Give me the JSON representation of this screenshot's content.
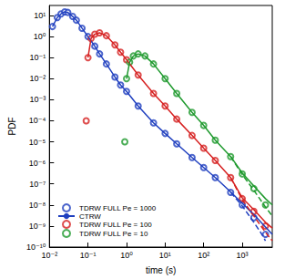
{
  "chart_data": {
    "type": "line",
    "log": true,
    "grid": false,
    "legend": "lower left",
    "x_label": "time (s)",
    "y_label": "PDF",
    "xlim": [
      0.01,
      6000
    ],
    "ylim": [
      1e-10,
      30
    ],
    "xticks": [
      {
        "value": 0.01,
        "label": "10⁻²"
      },
      {
        "value": 0.1,
        "label": "10⁻¹"
      },
      {
        "value": 1,
        "label": "10⁰"
      },
      {
        "value": 10,
        "label": "10¹"
      },
      {
        "value": 100,
        "label": "10²"
      },
      {
        "value": 1000,
        "label": "10³"
      }
    ],
    "yticks": [
      {
        "value": 1e-10,
        "label": "10⁻¹⁰"
      },
      {
        "value": 1e-09,
        "label": "10⁻⁹"
      },
      {
        "value": 1e-08,
        "label": "10⁻⁸"
      },
      {
        "value": 1e-07,
        "label": "10⁻⁷"
      },
      {
        "value": 1e-06,
        "label": "10⁻⁶"
      },
      {
        "value": 1e-05,
        "label": "10⁻⁵"
      },
      {
        "value": 0.0001,
        "label": "10⁻⁴"
      },
      {
        "value": 0.001,
        "label": "10⁻³"
      },
      {
        "value": 0.01,
        "label": "10⁻²"
      },
      {
        "value": 0.1,
        "label": "10⁻¹"
      },
      {
        "value": 1,
        "label": "10⁰"
      },
      {
        "value": 10,
        "label": "10¹"
      }
    ],
    "series": [
      {
        "name": "TDRW FULL Pe = 1000",
        "type": "scatter",
        "marker": "open_circle",
        "color": "#1f3fbf",
        "x": [
          0.012,
          0.016,
          0.02,
          0.025,
          0.03,
          0.04,
          0.05,
          0.07,
          0.1,
          0.15,
          0.2,
          0.3,
          0.5,
          0.7,
          1,
          2,
          5,
          10,
          20,
          50,
          100,
          200,
          500,
          1000,
          2000,
          4000
        ],
        "values": [
          3,
          8,
          12,
          15,
          14,
          9,
          6,
          2.5,
          1,
          0.35,
          0.15,
          0.05,
          0.012,
          0.005,
          0.0025,
          0.0005,
          8e-05,
          2.5e-05,
          8e-06,
          1.8e-06,
          6e-07,
          2e-07,
          4e-08,
          1e-08,
          2.5e-09,
          4e-10
        ]
      },
      {
        "name": "CTRW",
        "type": "line",
        "line_style": "solid",
        "color": "#1f3fbf",
        "x": [
          0.012,
          0.016,
          0.02,
          0.025,
          0.03,
          0.04,
          0.05,
          0.07,
          0.1,
          0.15,
          0.2,
          0.3,
          0.5,
          0.7,
          1,
          2,
          5,
          10,
          20,
          50,
          100,
          200,
          500,
          1000,
          2000,
          4000,
          6000
        ],
        "values": [
          3,
          8,
          12,
          15,
          14,
          9,
          6,
          2.5,
          1,
          0.35,
          0.15,
          0.05,
          0.012,
          0.005,
          0.0025,
          0.0005,
          8e-05,
          2.5e-05,
          8e-06,
          1.8e-06,
          6e-07,
          2e-07,
          4.2e-08,
          1.2e-08,
          3.5e-09,
          9e-10,
          4e-10
        ]
      },
      {
        "name": "TDRW FULL Pe = 100",
        "type": "scatter",
        "marker": "open_circle",
        "color": "#d62020",
        "x": [
          0.09,
          0.1,
          0.12,
          0.15,
          0.2,
          0.3,
          0.5,
          0.7,
          1,
          2,
          5,
          10,
          20,
          50,
          100,
          200,
          500,
          1000,
          2000,
          4000
        ],
        "values": [
          0.0001,
          0.1,
          0.8,
          1.3,
          1.5,
          1.1,
          0.4,
          0.18,
          0.08,
          0.015,
          0.002,
          0.0005,
          0.00012,
          2e-05,
          5e-06,
          1.3e-06,
          2e-07,
          2e-08,
          5e-09,
          1e-09
        ]
      },
      {
        "name": "CTRW",
        "type": "line",
        "line_style": "solid",
        "color": "#d62020",
        "x": [
          0.1,
          0.12,
          0.15,
          0.2,
          0.3,
          0.5,
          0.7,
          1,
          2,
          5,
          10,
          20,
          50,
          100,
          200,
          500,
          1000,
          2000,
          4000,
          6000
        ],
        "values": [
          0.1,
          0.8,
          1.3,
          1.5,
          1.1,
          0.4,
          0.18,
          0.08,
          0.015,
          0.002,
          0.0005,
          0.00012,
          2e-05,
          5e-06,
          1.3e-06,
          2e-07,
          2.2e-08,
          6e-09,
          1.5e-09,
          8e-10
        ]
      },
      {
        "name": "TDRW FULL Pe = 10",
        "type": "scatter",
        "marker": "open_circle",
        "color": "#1f9a2e",
        "x": [
          0.9,
          1,
          1.2,
          1.5,
          2,
          3,
          5,
          10,
          20,
          50,
          100,
          200,
          500,
          1000,
          2000,
          4000
        ],
        "values": [
          1e-05,
          0.01,
          0.06,
          0.12,
          0.15,
          0.12,
          0.05,
          0.01,
          0.002,
          0.00025,
          6e-05,
          1.2e-05,
          2e-06,
          3e-07,
          6e-08,
          1e-08
        ]
      },
      {
        "name": "CTRW",
        "type": "line",
        "line_style": "solid",
        "color": "#1f9a2e",
        "x": [
          1,
          1.2,
          1.5,
          2,
          3,
          5,
          10,
          20,
          50,
          100,
          200,
          500,
          1000,
          2000,
          4000,
          6000
        ],
        "values": [
          0.01,
          0.06,
          0.12,
          0.15,
          0.12,
          0.05,
          0.01,
          0.002,
          0.00025,
          6e-05,
          1.2e-05,
          2e-06,
          3.3e-07,
          8e-08,
          2e-08,
          1e-08
        ]
      },
      {
        "type": "line",
        "line_style": "dashed",
        "color": "#1f3fbf",
        "x": [
          500,
          1000,
          2000,
          3000,
          4000
        ],
        "values": [
          4e-08,
          9e-09,
          1.5e-09,
          5e-10,
          2e-10
        ]
      },
      {
        "type": "line",
        "line_style": "dashed",
        "color": "#d62020",
        "x": [
          500,
          1000,
          2000,
          4000,
          6000
        ],
        "values": [
          2e-07,
          1.8e-08,
          3e-09,
          5e-10,
          2e-10
        ]
      },
      {
        "type": "line",
        "line_style": "dashed",
        "color": "#1f9a2e",
        "x": [
          500,
          1000,
          2000,
          4000,
          6000
        ],
        "values": [
          2e-06,
          2.8e-07,
          5e-08,
          8e-09,
          3e-09
        ]
      }
    ]
  }
}
